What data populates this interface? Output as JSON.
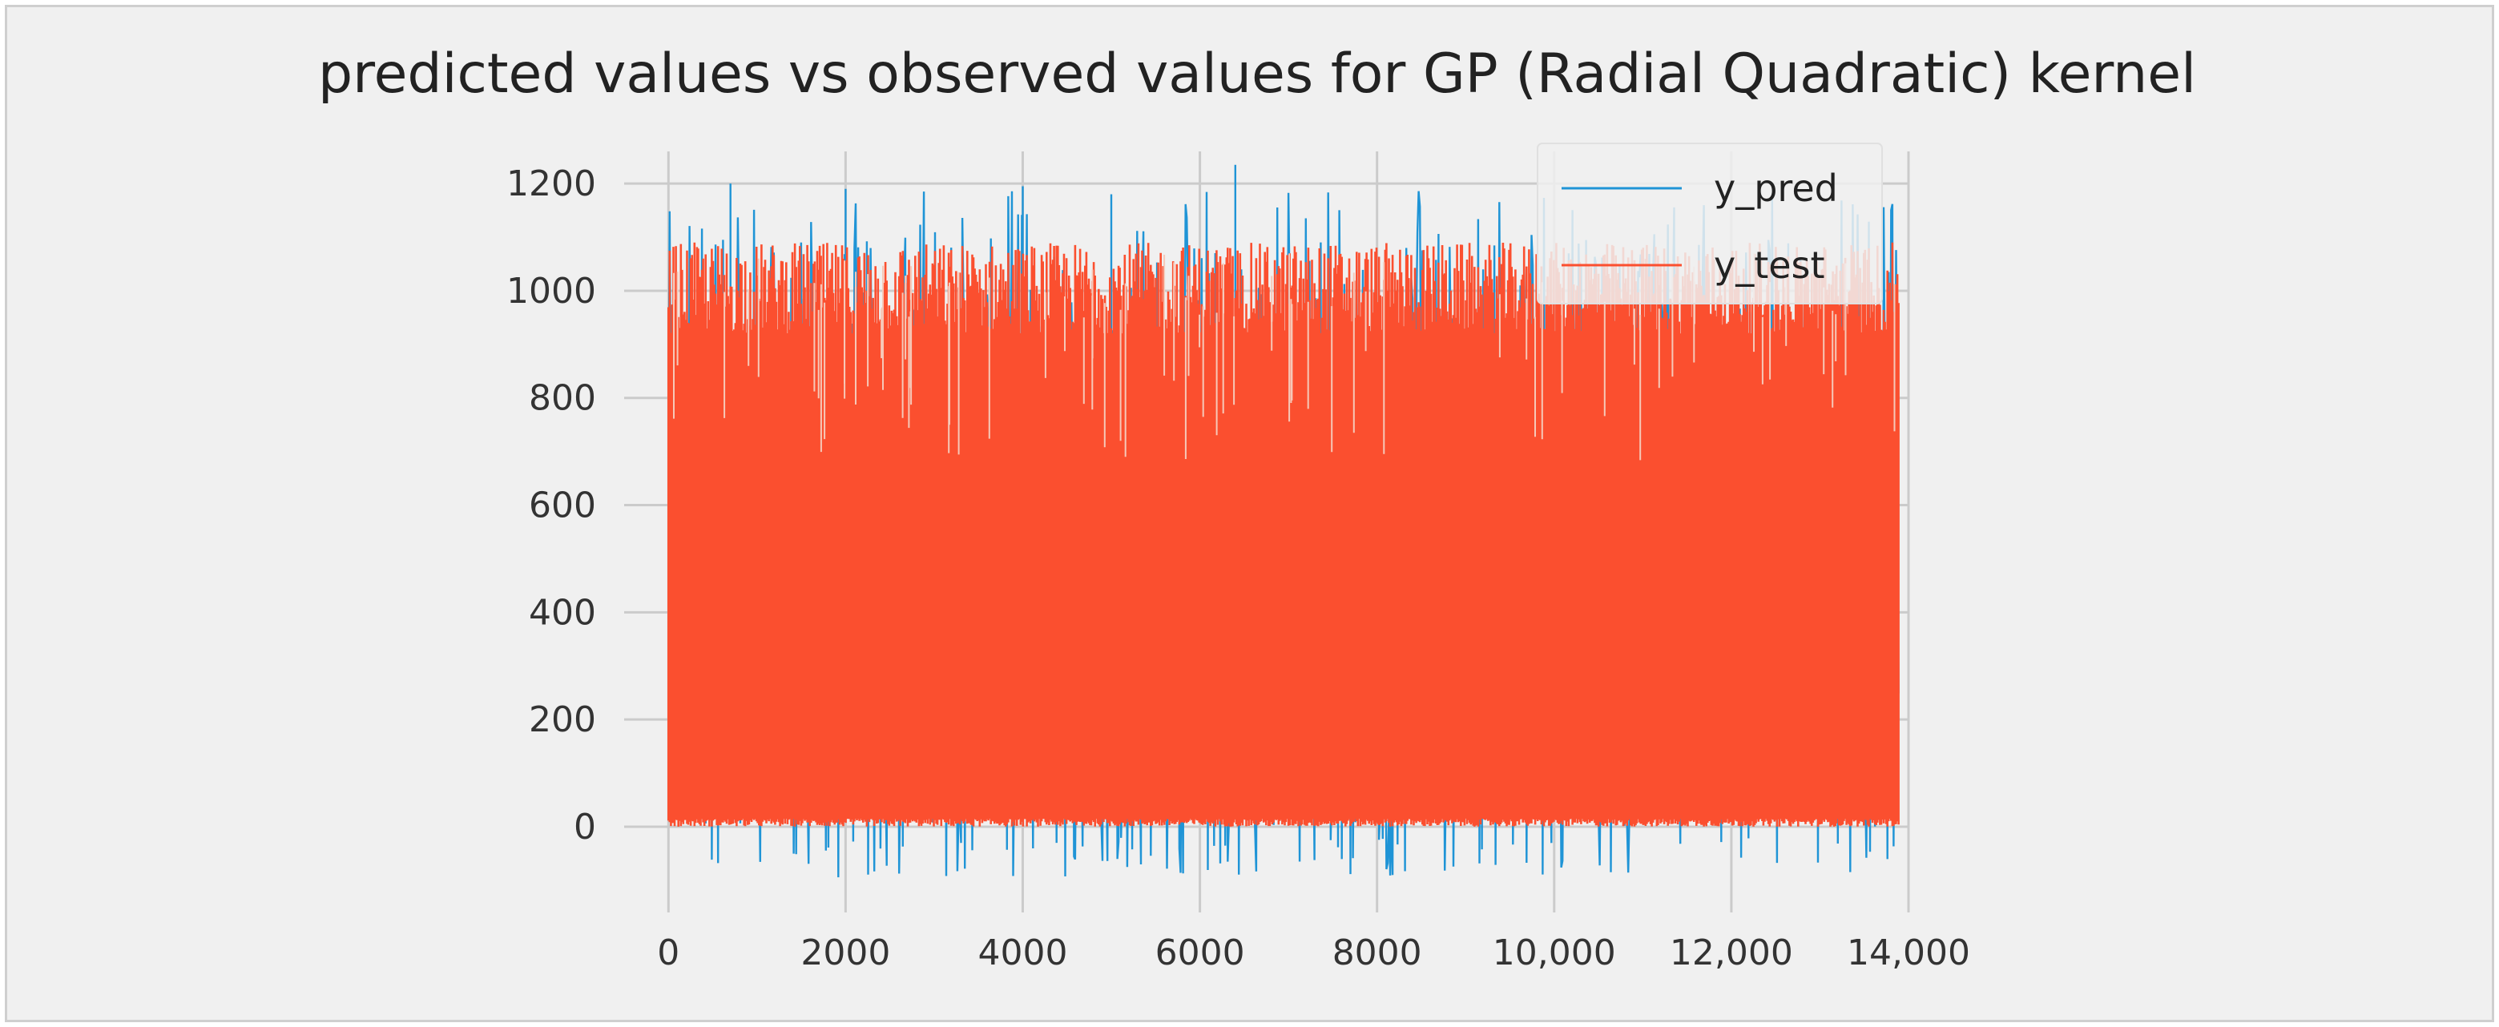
{
  "chart_data": {
    "type": "line",
    "title": "predicted values vs observed values for GP (Radial Quadratic) kernel",
    "xlabel": "",
    "ylabel": "",
    "xlim": [
      -500,
      14000
    ],
    "ylim": [
      -160,
      1260
    ],
    "x_ticks": [
      0,
      2000,
      4000,
      6000,
      8000,
      10000,
      12000,
      14000
    ],
    "x_tick_labels": [
      "0",
      "2000",
      "4000",
      "6000",
      "8000",
      "10,000",
      "12,000",
      "14,000"
    ],
    "y_ticks": [
      0,
      200,
      400,
      600,
      800,
      1000,
      1200
    ],
    "y_tick_labels": [
      "0",
      "200",
      "400",
      "600",
      "800",
      "1000",
      "1200"
    ],
    "grid": true,
    "legend_position": "top-right",
    "n_points": 13900,
    "series": [
      {
        "name": "y_pred",
        "color": "#1f94d6",
        "value_range": [
          -110,
          1235
        ],
        "notable_peaks": [
          [
            700,
            1200
          ],
          [
            2000,
            1190
          ],
          [
            4000,
            1195
          ],
          [
            6400,
            1235
          ],
          [
            5000,
            1180
          ]
        ]
      },
      {
        "name": "y_test",
        "color": "#fb4f2f",
        "value_range": [
          0,
          1100
        ]
      }
    ],
    "legend": [
      {
        "label": "y_pred",
        "color": "#1f94d6"
      },
      {
        "label": "y_test",
        "color": "#fb4f2f"
      }
    ]
  }
}
